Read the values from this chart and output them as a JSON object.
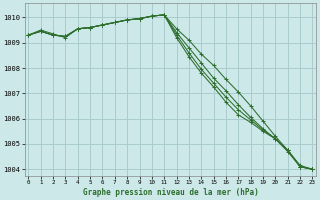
{
  "title": "Graphe pression niveau de la mer (hPa)",
  "bg_color": "#cce8e8",
  "grid_color": "#aacccc",
  "line_color": "#2d6e2d",
  "x_values": [
    0,
    1,
    2,
    3,
    4,
    5,
    6,
    7,
    8,
    9,
    10,
    11,
    12,
    13,
    14,
    15,
    16,
    17,
    18,
    19,
    20,
    21,
    22,
    23
  ],
  "series": {
    "line1": [
      1009.3,
      1009.5,
      1009.35,
      1009.2,
      1009.55,
      1009.6,
      1009.7,
      1009.8,
      1009.9,
      1009.95,
      1010.05,
      1010.1,
      1009.55,
      1009.1,
      1008.55,
      1008.1,
      1007.55,
      1007.05,
      1006.5,
      1005.9,
      1005.3,
      1004.75,
      1004.15,
      1004.0
    ],
    "line2": [
      1009.3,
      1009.45,
      1009.3,
      1009.25,
      1009.55,
      1009.6,
      1009.7,
      1009.8,
      1009.9,
      1009.95,
      1010.05,
      1010.1,
      1009.4,
      1008.8,
      1008.2,
      1007.6,
      1007.1,
      1006.55,
      1006.05,
      1005.6,
      1005.2,
      1004.7,
      1004.1,
      1004.0
    ],
    "line3": [
      1009.3,
      1009.45,
      1009.3,
      1009.25,
      1009.55,
      1009.6,
      1009.7,
      1009.8,
      1009.9,
      1009.95,
      1010.05,
      1010.1,
      1009.3,
      1008.6,
      1007.95,
      1007.4,
      1006.85,
      1006.35,
      1005.95,
      1005.55,
      1005.2,
      1004.75,
      1004.1,
      1004.0
    ],
    "line4": [
      1009.3,
      1009.45,
      1009.3,
      1009.25,
      1009.55,
      1009.6,
      1009.7,
      1009.8,
      1009.9,
      1009.95,
      1010.05,
      1010.1,
      1009.2,
      1008.45,
      1007.8,
      1007.25,
      1006.65,
      1006.15,
      1005.85,
      1005.5,
      1005.2,
      1004.75,
      1004.1,
      1004.0
    ]
  },
  "ylim": [
    1003.75,
    1010.55
  ],
  "yticks": [
    1004,
    1005,
    1006,
    1007,
    1008,
    1009,
    1010
  ],
  "xlim": [
    -0.3,
    23.3
  ]
}
